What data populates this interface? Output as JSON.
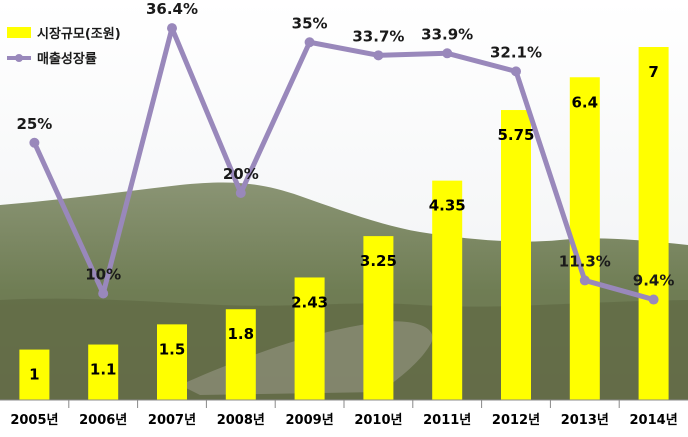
{
  "chart_data": {
    "type": "bar",
    "categories": [
      "2005년",
      "2006년",
      "2007년",
      "2008년",
      "2009년",
      "2010년",
      "2011년",
      "2012년",
      "2013년",
      "2014년"
    ],
    "series": [
      {
        "name": "시장규모(조원)",
        "type": "bar",
        "color": "#ffff00",
        "values": [
          1,
          1.1,
          1.5,
          1.8,
          2.43,
          3.25,
          4.35,
          5.75,
          6.4,
          7
        ],
        "labels": [
          "1",
          "1.1",
          "1.5",
          "1.8",
          "2.43",
          "3.25",
          "4.35",
          "5.75",
          "6.4",
          "7"
        ]
      },
      {
        "name": "매출성장률",
        "type": "line",
        "color": "#9988bb",
        "values": [
          25,
          10,
          36.4,
          20,
          35,
          33.7,
          33.9,
          32.1,
          11.3,
          9.4
        ],
        "labels": [
          "25%",
          "10%",
          "36.4%",
          "20%",
          "35%",
          "33.7%",
          "33.9%",
          "32.1%",
          "11.3%",
          "9.4%"
        ]
      }
    ],
    "legend": {
      "position": "top-left"
    },
    "grid": false,
    "bar_ylim": [
      0,
      7.5
    ],
    "line_ylim": [
      5,
      38
    ]
  }
}
